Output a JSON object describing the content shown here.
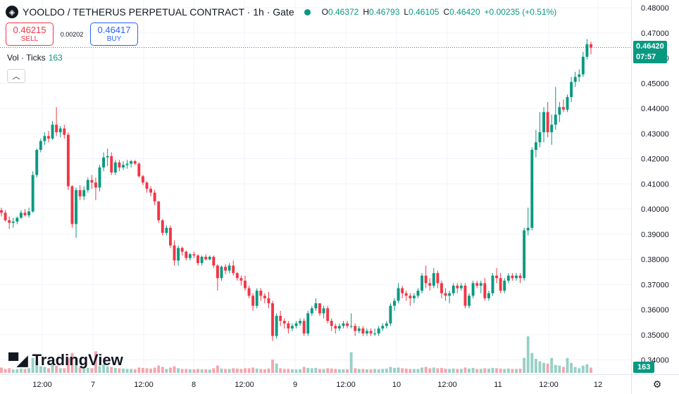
{
  "header": {
    "logo_icon": "symbol-logo-icon",
    "title": "YOOLDO / TETHERUS PERPETUAL CONTRACT · 1h · Gate",
    "ohlc": [
      {
        "k": "O",
        "v": "0.46372"
      },
      {
        "k": "H",
        "v": "0.46793"
      },
      {
        "k": "L",
        "v": "0.46105"
      },
      {
        "k": "C",
        "v": "0.46420"
      },
      {
        "k": "",
        "v": "+0.00235 (+0.51%)"
      }
    ]
  },
  "trade": {
    "sell_price": "0.46215",
    "sell_label": "SELL",
    "spread": "0.00202",
    "buy_price": "0.46417",
    "buy_label": "BUY"
  },
  "volume_legend": {
    "label": "Vol · Ticks",
    "value": "163"
  },
  "collapse_icon": "chevron-up-icon",
  "branding": "TradingView",
  "price_tag": {
    "price": "0.46420",
    "countdown": "07:57"
  },
  "volume_tag": "163",
  "colors": {
    "up": "#089981",
    "down": "#f23645",
    "up_vol": "#99d0c6",
    "down_vol": "#f5a6ad",
    "grid": "#f0f3fa"
  },
  "chart_data": {
    "type": "candlestick",
    "y_tick_labels": [
      "0.48000",
      "0.47000",
      "0.46000",
      "0.45000",
      "0.44000",
      "0.43000",
      "0.42000",
      "0.41000",
      "0.40000",
      "0.39000",
      "0.38000",
      "0.37000",
      "0.36000",
      "0.35000",
      "0.34000"
    ],
    "x_tick_labels": [
      "12:00",
      "7",
      "12:00",
      "8",
      "12:00",
      "9",
      "12:00",
      "10",
      "12:00",
      "11",
      "12:00",
      "12"
    ],
    "ylim": [
      0.3355,
      0.48
    ],
    "last_price": 0.4642,
    "current_volume": 163,
    "grid": true,
    "candles": [
      [
        0.3995,
        0.4005,
        0.397,
        0.3985,
        16
      ],
      [
        0.3985,
        0.3995,
        0.395,
        0.3955,
        12
      ],
      [
        0.3955,
        0.397,
        0.392,
        0.3945,
        14
      ],
      [
        0.3945,
        0.3965,
        0.3925,
        0.395,
        10
      ],
      [
        0.395,
        0.397,
        0.394,
        0.3965,
        11
      ],
      [
        0.3965,
        0.3995,
        0.396,
        0.3985,
        13
      ],
      [
        0.3985,
        0.4,
        0.397,
        0.3975,
        12
      ],
      [
        0.3975,
        0.4005,
        0.3965,
        0.399,
        14
      ],
      [
        0.399,
        0.415,
        0.3985,
        0.4135,
        45
      ],
      [
        0.4135,
        0.424,
        0.4125,
        0.4235,
        38
      ],
      [
        0.4235,
        0.428,
        0.4225,
        0.427,
        20
      ],
      [
        0.427,
        0.4305,
        0.4255,
        0.429,
        18
      ],
      [
        0.429,
        0.431,
        0.4265,
        0.428,
        14
      ],
      [
        0.428,
        0.435,
        0.4275,
        0.4335,
        24
      ],
      [
        0.4335,
        0.4405,
        0.429,
        0.4305,
        22
      ],
      [
        0.4305,
        0.433,
        0.4285,
        0.432,
        14
      ],
      [
        0.432,
        0.4335,
        0.428,
        0.4295,
        14
      ],
      [
        0.4295,
        0.4305,
        0.4075,
        0.409,
        46
      ],
      [
        0.409,
        0.4095,
        0.3925,
        0.394,
        60
      ],
      [
        0.394,
        0.4085,
        0.3885,
        0.4075,
        40
      ],
      [
        0.4075,
        0.4095,
        0.4035,
        0.405,
        16
      ],
      [
        0.405,
        0.409,
        0.4035,
        0.4075,
        14
      ],
      [
        0.4075,
        0.4125,
        0.4065,
        0.4115,
        15
      ],
      [
        0.4115,
        0.4135,
        0.408,
        0.4105,
        14
      ],
      [
        0.4105,
        0.4125,
        0.4035,
        0.4085,
        65
      ],
      [
        0.4085,
        0.4175,
        0.407,
        0.4165,
        20
      ],
      [
        0.4165,
        0.4225,
        0.415,
        0.4205,
        26
      ],
      [
        0.4205,
        0.424,
        0.417,
        0.421,
        20
      ],
      [
        0.421,
        0.4225,
        0.4135,
        0.4145,
        18
      ],
      [
        0.4145,
        0.4195,
        0.4135,
        0.4185,
        15
      ],
      [
        0.4185,
        0.4195,
        0.415,
        0.4165,
        14
      ],
      [
        0.4165,
        0.419,
        0.4155,
        0.4175,
        13
      ],
      [
        0.4175,
        0.4195,
        0.416,
        0.418,
        12
      ],
      [
        0.418,
        0.4195,
        0.4165,
        0.419,
        12
      ],
      [
        0.419,
        0.4195,
        0.4175,
        0.418,
        11
      ],
      [
        0.418,
        0.4185,
        0.4125,
        0.413,
        16
      ],
      [
        0.413,
        0.4135,
        0.4095,
        0.4105,
        15
      ],
      [
        0.4105,
        0.411,
        0.4065,
        0.408,
        14
      ],
      [
        0.408,
        0.409,
        0.405,
        0.4065,
        13
      ],
      [
        0.4065,
        0.4075,
        0.4015,
        0.403,
        16
      ],
      [
        0.403,
        0.403,
        0.3945,
        0.3955,
        22
      ],
      [
        0.3955,
        0.396,
        0.3895,
        0.3905,
        18
      ],
      [
        0.3905,
        0.3935,
        0.3895,
        0.3925,
        12
      ],
      [
        0.3925,
        0.3935,
        0.3845,
        0.3855,
        16
      ],
      [
        0.3855,
        0.3875,
        0.3775,
        0.3795,
        20
      ],
      [
        0.3795,
        0.3855,
        0.3775,
        0.3845,
        14
      ],
      [
        0.3845,
        0.385,
        0.3815,
        0.383,
        12
      ],
      [
        0.383,
        0.3835,
        0.3795,
        0.3805,
        12
      ],
      [
        0.3805,
        0.3825,
        0.3795,
        0.382,
        11
      ],
      [
        0.382,
        0.383,
        0.3805,
        0.3815,
        11
      ],
      [
        0.3815,
        0.382,
        0.3775,
        0.3785,
        12
      ],
      [
        0.3785,
        0.3815,
        0.3775,
        0.381,
        11
      ],
      [
        0.381,
        0.382,
        0.3795,
        0.38,
        11
      ],
      [
        0.38,
        0.3815,
        0.3795,
        0.381,
        10
      ],
      [
        0.381,
        0.3815,
        0.3765,
        0.3775,
        14
      ],
      [
        0.3775,
        0.378,
        0.3675,
        0.3725,
        22
      ],
      [
        0.3725,
        0.3775,
        0.3715,
        0.377,
        13
      ],
      [
        0.377,
        0.378,
        0.374,
        0.3755,
        12
      ],
      [
        0.3755,
        0.3785,
        0.3745,
        0.3775,
        12
      ],
      [
        0.3775,
        0.3795,
        0.3735,
        0.3745,
        14
      ],
      [
        0.3745,
        0.375,
        0.3715,
        0.3725,
        13
      ],
      [
        0.3725,
        0.3735,
        0.3695,
        0.3715,
        12
      ],
      [
        0.3715,
        0.3735,
        0.3675,
        0.3685,
        14
      ],
      [
        0.3685,
        0.3695,
        0.3645,
        0.3655,
        14
      ],
      [
        0.3655,
        0.3665,
        0.3595,
        0.3615,
        16
      ],
      [
        0.3615,
        0.3685,
        0.3605,
        0.3675,
        13
      ],
      [
        0.3675,
        0.3685,
        0.3635,
        0.3655,
        12
      ],
      [
        0.3655,
        0.3665,
        0.3625,
        0.3645,
        11
      ],
      [
        0.3645,
        0.367,
        0.3605,
        0.3625,
        13
      ],
      [
        0.3625,
        0.3635,
        0.3475,
        0.3495,
        40
      ],
      [
        0.3495,
        0.3585,
        0.3485,
        0.3575,
        28
      ],
      [
        0.3575,
        0.3595,
        0.3535,
        0.3555,
        14
      ],
      [
        0.3555,
        0.3565,
        0.3525,
        0.3545,
        12
      ],
      [
        0.3545,
        0.3555,
        0.3505,
        0.3525,
        12
      ],
      [
        0.3525,
        0.3545,
        0.3515,
        0.3535,
        11
      ],
      [
        0.3535,
        0.3555,
        0.3525,
        0.3545,
        11
      ],
      [
        0.3545,
        0.3565,
        0.3535,
        0.3555,
        11
      ],
      [
        0.3555,
        0.3565,
        0.3495,
        0.3505,
        18
      ],
      [
        0.3505,
        0.3595,
        0.3495,
        0.3585,
        15
      ],
      [
        0.3585,
        0.3615,
        0.3575,
        0.3605,
        14
      ],
      [
        0.3605,
        0.3645,
        0.3595,
        0.3625,
        15
      ],
      [
        0.3625,
        0.3625,
        0.3575,
        0.3585,
        12
      ],
      [
        0.3585,
        0.3615,
        0.3565,
        0.3605,
        12
      ],
      [
        0.3605,
        0.3615,
        0.3545,
        0.3555,
        14
      ],
      [
        0.3555,
        0.3565,
        0.3515,
        0.3535,
        13
      ],
      [
        0.3535,
        0.3545,
        0.3505,
        0.3525,
        12
      ],
      [
        0.3525,
        0.3545,
        0.3515,
        0.3535,
        11
      ],
      [
        0.3535,
        0.3555,
        0.3525,
        0.3545,
        11
      ],
      [
        0.3545,
        0.3555,
        0.3525,
        0.3535,
        11
      ],
      [
        0.3535,
        0.3585,
        0.3525,
        0.3535,
        62
      ],
      [
        0.3535,
        0.3545,
        0.3495,
        0.3515,
        14
      ],
      [
        0.3515,
        0.3535,
        0.3505,
        0.3525,
        12
      ],
      [
        0.3525,
        0.3535,
        0.3495,
        0.3505,
        12
      ],
      [
        0.3505,
        0.3525,
        0.3495,
        0.3515,
        11
      ],
      [
        0.3515,
        0.3525,
        0.3495,
        0.3505,
        11
      ],
      [
        0.3505,
        0.3525,
        0.3495,
        0.3505,
        12
      ],
      [
        0.3505,
        0.3535,
        0.3495,
        0.3525,
        11
      ],
      [
        0.3525,
        0.3545,
        0.3515,
        0.3535,
        12
      ],
      [
        0.3535,
        0.3555,
        0.3525,
        0.3545,
        13
      ],
      [
        0.3545,
        0.3625,
        0.3535,
        0.3615,
        18
      ],
      [
        0.3615,
        0.3645,
        0.3595,
        0.3635,
        15
      ],
      [
        0.3635,
        0.3705,
        0.3625,
        0.3685,
        16
      ],
      [
        0.3685,
        0.3695,
        0.3645,
        0.3665,
        14
      ],
      [
        0.3665,
        0.3675,
        0.3635,
        0.3655,
        13
      ],
      [
        0.3655,
        0.3665,
        0.3615,
        0.3645,
        12
      ],
      [
        0.3645,
        0.3665,
        0.3625,
        0.3655,
        12
      ],
      [
        0.3655,
        0.3685,
        0.3645,
        0.3675,
        12
      ],
      [
        0.3675,
        0.3745,
        0.3665,
        0.3735,
        16
      ],
      [
        0.3735,
        0.3775,
        0.3685,
        0.3705,
        18
      ],
      [
        0.3705,
        0.3725,
        0.3675,
        0.3695,
        14
      ],
      [
        0.3695,
        0.3765,
        0.3685,
        0.3745,
        16
      ],
      [
        0.3745,
        0.3755,
        0.3685,
        0.3705,
        14
      ],
      [
        0.3705,
        0.3715,
        0.3645,
        0.3665,
        15
      ],
      [
        0.3665,
        0.3685,
        0.3635,
        0.3655,
        13
      ],
      [
        0.3655,
        0.3675,
        0.3625,
        0.3665,
        12
      ],
      [
        0.3665,
        0.3705,
        0.3655,
        0.3695,
        13
      ],
      [
        0.3695,
        0.3705,
        0.3665,
        0.3685,
        12
      ],
      [
        0.3685,
        0.3705,
        0.3675,
        0.3695,
        12
      ],
      [
        0.3695,
        0.3705,
        0.3605,
        0.3615,
        16
      ],
      [
        0.3615,
        0.3665,
        0.3605,
        0.3655,
        13
      ],
      [
        0.3655,
        0.3715,
        0.3645,
        0.3705,
        15
      ],
      [
        0.3705,
        0.3715,
        0.3685,
        0.3695,
        12
      ],
      [
        0.3695,
        0.3715,
        0.3665,
        0.3705,
        12
      ],
      [
        0.3705,
        0.3725,
        0.3635,
        0.3645,
        14
      ],
      [
        0.3645,
        0.3675,
        0.3635,
        0.3665,
        13
      ],
      [
        0.3665,
        0.3745,
        0.3655,
        0.3735,
        15
      ],
      [
        0.3735,
        0.3765,
        0.3705,
        0.3725,
        14
      ],
      [
        0.3725,
        0.3745,
        0.3665,
        0.3675,
        13
      ],
      [
        0.3675,
        0.3725,
        0.3665,
        0.3715,
        12
      ],
      [
        0.3715,
        0.3745,
        0.3705,
        0.3735,
        13
      ],
      [
        0.3735,
        0.3745,
        0.3715,
        0.3725,
        12
      ],
      [
        0.3725,
        0.3745,
        0.3715,
        0.3735,
        12
      ],
      [
        0.3735,
        0.3745,
        0.3705,
        0.3725,
        13
      ],
      [
        0.3725,
        0.3925,
        0.3715,
        0.3915,
        45
      ],
      [
        0.3915,
        0.4005,
        0.3895,
        0.3925,
        110
      ],
      [
        0.3925,
        0.4245,
        0.3915,
        0.4235,
        60
      ],
      [
        0.4235,
        0.4315,
        0.4205,
        0.4265,
        42
      ],
      [
        0.4265,
        0.4385,
        0.4245,
        0.4305,
        35
      ],
      [
        0.4305,
        0.4405,
        0.4265,
        0.4385,
        30
      ],
      [
        0.4385,
        0.4425,
        0.4285,
        0.4305,
        28
      ],
      [
        0.4305,
        0.4375,
        0.4255,
        0.4335,
        45
      ],
      [
        0.4335,
        0.4485,
        0.4315,
        0.4375,
        24
      ],
      [
        0.4375,
        0.4425,
        0.4345,
        0.4405,
        22
      ],
      [
        0.4405,
        0.4435,
        0.4385,
        0.4395,
        18
      ],
      [
        0.4395,
        0.4455,
        0.4385,
        0.4445,
        45
      ],
      [
        0.4445,
        0.4525,
        0.4425,
        0.4505,
        30
      ],
      [
        0.4505,
        0.4545,
        0.4485,
        0.4525,
        18
      ],
      [
        0.4525,
        0.4555,
        0.4505,
        0.4535,
        14
      ],
      [
        0.4535,
        0.4625,
        0.4525,
        0.4605,
        22
      ],
      [
        0.4605,
        0.4675,
        0.4595,
        0.4655,
        26
      ],
      [
        0.4655,
        0.4665,
        0.4615,
        0.4642,
        16
      ]
    ]
  }
}
